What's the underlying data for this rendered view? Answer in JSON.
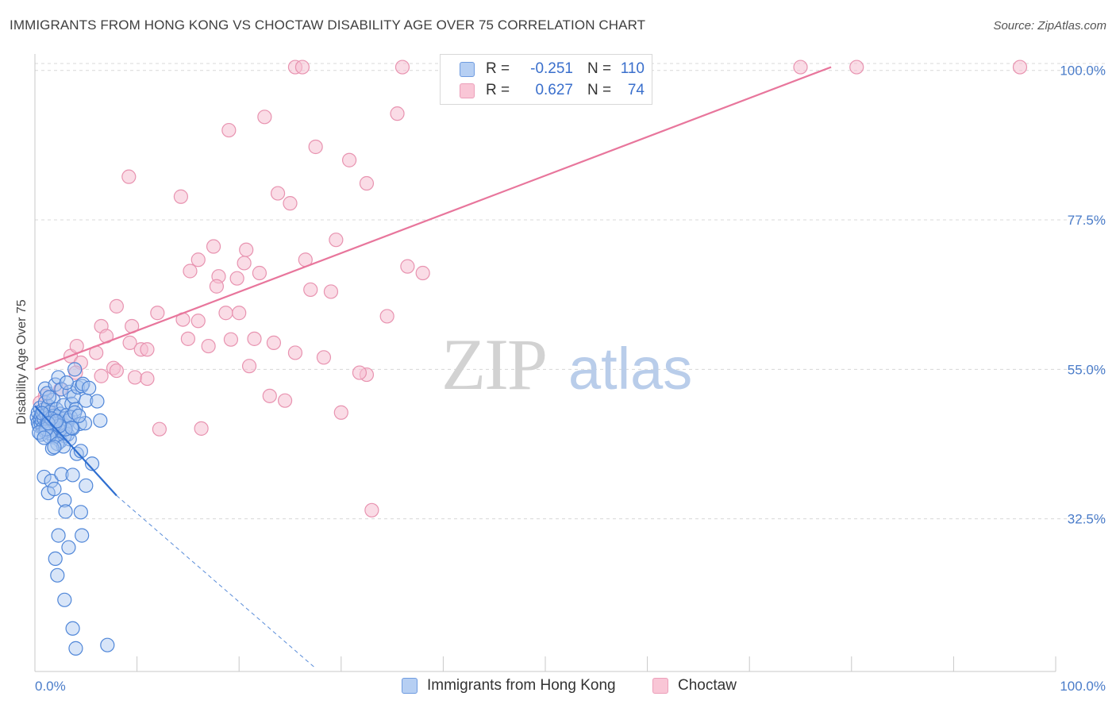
{
  "title": "IMMIGRANTS FROM HONG KONG VS CHOCTAW DISABILITY AGE OVER 75 CORRELATION CHART",
  "source": "Source: ZipAtlas.com",
  "watermark": {
    "zip": "ZIP",
    "atlas": "atlas"
  },
  "legend": {
    "rows": [
      {
        "r_label": "R =",
        "r_value": "-0.251",
        "n_label": "N =",
        "n_value": "110"
      },
      {
        "r_label": "R =",
        "r_value": "0.627",
        "n_label": "N =",
        "n_value": "74"
      }
    ]
  },
  "bottom_legend": [
    {
      "label": "Immigrants from Hong Kong"
    },
    {
      "label": "Choctaw"
    }
  ],
  "colors": {
    "blue_fill": "#a9c6f0",
    "blue_stroke": "#4f86d8",
    "blue_line": "#2f6fd0",
    "pink_fill": "#f6bfd1",
    "pink_stroke": "#e893b0",
    "pink_line": "#e8769c",
    "axis_text": "#4a7cc9",
    "grid": "#d8d8d8"
  },
  "chart_data": {
    "type": "scatter",
    "title": "IMMIGRANTS FROM HONG KONG VS CHOCTAW DISABILITY AGE OVER 75 CORRELATION CHART",
    "xlabel": "",
    "ylabel": "Disability Age Over 75",
    "xlim": [
      0,
      100
    ],
    "ylim": [
      10,
      102
    ],
    "x_tick_labels": [
      "0.0%",
      "100.0%"
    ],
    "y_ticks": [
      32.5,
      55.0,
      77.5,
      100.0
    ],
    "y_tick_labels": [
      "32.5%",
      "55.0%",
      "77.5%",
      "100.0%"
    ],
    "series": [
      {
        "name": "Immigrants from Hong Kong",
        "r": -0.251,
        "n": 110,
        "trend": {
          "solid": [
            [
              0,
              49.5
            ],
            [
              8,
              36.0
            ]
          ],
          "dashed": [
            [
              8,
              36.0
            ],
            [
              27.5,
              10.0
            ]
          ]
        },
        "points": [
          [
            0.2,
            47.8
          ],
          [
            0.3,
            47.0
          ],
          [
            0.3,
            48.5
          ],
          [
            0.4,
            46.5
          ],
          [
            0.5,
            49.2
          ],
          [
            0.5,
            47.6
          ],
          [
            0.6,
            46.8
          ],
          [
            0.6,
            48.0
          ],
          [
            0.7,
            47.3
          ],
          [
            0.8,
            48.9
          ],
          [
            0.8,
            46.2
          ],
          [
            0.9,
            47.5
          ],
          [
            1.0,
            50.0
          ],
          [
            1.0,
            45.8
          ],
          [
            1.1,
            48.2
          ],
          [
            1.2,
            47.0
          ],
          [
            1.2,
            46.4
          ],
          [
            1.3,
            49.5
          ],
          [
            1.4,
            47.8
          ],
          [
            1.5,
            46.6
          ],
          [
            1.5,
            48.6
          ],
          [
            1.6,
            45.9
          ],
          [
            1.7,
            47.2
          ],
          [
            1.8,
            50.4
          ],
          [
            1.8,
            48.0
          ],
          [
            1.9,
            46.9
          ],
          [
            2.0,
            47.4
          ],
          [
            2.1,
            49.0
          ],
          [
            2.2,
            46.3
          ],
          [
            2.3,
            47.9
          ],
          [
            2.4,
            45.5
          ],
          [
            2.5,
            48.3
          ],
          [
            2.6,
            47.1
          ],
          [
            2.7,
            46.0
          ],
          [
            2.8,
            49.6
          ],
          [
            2.9,
            47.6
          ],
          [
            3.0,
            46.5
          ],
          [
            3.1,
            48.1
          ],
          [
            3.2,
            45.2
          ],
          [
            3.3,
            47.3
          ],
          [
            1.0,
            52.1
          ],
          [
            1.2,
            51.4
          ],
          [
            1.4,
            50.8
          ],
          [
            2.0,
            52.7
          ],
          [
            2.3,
            53.8
          ],
          [
            2.6,
            52.0
          ],
          [
            3.4,
            51.6
          ],
          [
            3.6,
            49.8
          ],
          [
            3.8,
            50.9
          ],
          [
            4.2,
            52.3
          ],
          [
            4.6,
            52.5
          ],
          [
            5.0,
            50.3
          ],
          [
            4.0,
            49.0
          ],
          [
            3.5,
            47.8
          ],
          [
            3.9,
            48.5
          ],
          [
            4.4,
            46.8
          ],
          [
            2.5,
            44.2
          ],
          [
            1.8,
            44.8
          ],
          [
            1.5,
            45.4
          ],
          [
            2.9,
            45.0
          ],
          [
            3.4,
            44.5
          ],
          [
            1.0,
            45.6
          ],
          [
            0.6,
            45.2
          ],
          [
            1.4,
            44.9
          ],
          [
            2.2,
            43.8
          ],
          [
            2.8,
            43.4
          ],
          [
            1.7,
            43.1
          ],
          [
            3.7,
            46.1
          ],
          [
            4.9,
            46.9
          ],
          [
            6.4,
            47.3
          ],
          [
            3.0,
            46.0
          ],
          [
            2.0,
            46.8
          ],
          [
            1.1,
            46.0
          ],
          [
            0.4,
            45.5
          ],
          [
            0.9,
            44.7
          ],
          [
            3.9,
            55.0
          ],
          [
            3.1,
            53.0
          ],
          [
            4.7,
            52.8
          ],
          [
            5.3,
            52.2
          ],
          [
            6.1,
            50.2
          ],
          [
            1.9,
            43.3
          ],
          [
            4.1,
            42.3
          ],
          [
            4.5,
            42.7
          ],
          [
            5.6,
            40.8
          ],
          [
            0.9,
            38.8
          ],
          [
            1.6,
            38.2
          ],
          [
            2.6,
            39.2
          ],
          [
            3.7,
            39.1
          ],
          [
            1.3,
            36.4
          ],
          [
            1.9,
            37.0
          ],
          [
            5.0,
            37.5
          ],
          [
            2.9,
            35.3
          ],
          [
            3.0,
            33.6
          ],
          [
            4.5,
            33.5
          ],
          [
            2.3,
            30.0
          ],
          [
            3.3,
            28.2
          ],
          [
            4.6,
            30.0
          ],
          [
            2.0,
            26.5
          ],
          [
            2.2,
            24.0
          ],
          [
            2.9,
            20.3
          ],
          [
            3.7,
            16.0
          ],
          [
            4.0,
            13.0
          ],
          [
            7.1,
            13.5
          ],
          [
            4.3,
            48.0
          ],
          [
            3.6,
            46.2
          ],
          [
            2.4,
            46.5
          ],
          [
            1.6,
            47.6
          ],
          [
            0.7,
            48.4
          ],
          [
            1.3,
            46.9
          ],
          [
            2.1,
            47.2
          ]
        ]
      },
      {
        "name": "Choctaw",
        "r": 0.627,
        "n": 74,
        "trend": {
          "solid": [
            [
              0,
              55.0
            ],
            [
              78,
              100.5
            ]
          ]
        },
        "points": [
          [
            25.5,
            100.5
          ],
          [
            26.2,
            100.5
          ],
          [
            36.0,
            100.5
          ],
          [
            75.0,
            100.5
          ],
          [
            80.5,
            100.5
          ],
          [
            96.5,
            100.5
          ],
          [
            22.5,
            93.0
          ],
          [
            35.5,
            93.5
          ],
          [
            19.0,
            91.0
          ],
          [
            27.5,
            88.5
          ],
          [
            30.8,
            86.5
          ],
          [
            9.2,
            84.0
          ],
          [
            32.5,
            83.0
          ],
          [
            14.3,
            81.0
          ],
          [
            23.8,
            81.5
          ],
          [
            25.0,
            80.0
          ],
          [
            29.5,
            74.5
          ],
          [
            17.5,
            73.5
          ],
          [
            20.7,
            73.0
          ],
          [
            16.0,
            71.5
          ],
          [
            20.5,
            71.0
          ],
          [
            26.5,
            71.5
          ],
          [
            15.2,
            69.8
          ],
          [
            18.0,
            69.0
          ],
          [
            19.8,
            68.7
          ],
          [
            17.8,
            67.5
          ],
          [
            22.0,
            69.5
          ],
          [
            36.5,
            70.5
          ],
          [
            38.0,
            69.5
          ],
          [
            27.0,
            67.0
          ],
          [
            29.0,
            66.7
          ],
          [
            8.0,
            64.5
          ],
          [
            12.0,
            63.5
          ],
          [
            14.5,
            62.5
          ],
          [
            18.7,
            63.5
          ],
          [
            16.0,
            62.3
          ],
          [
            20.0,
            63.5
          ],
          [
            34.5,
            63.0
          ],
          [
            6.5,
            61.5
          ],
          [
            9.5,
            61.5
          ],
          [
            7.0,
            60.0
          ],
          [
            19.2,
            59.5
          ],
          [
            15.0,
            59.6
          ],
          [
            9.3,
            59.0
          ],
          [
            10.4,
            58.0
          ],
          [
            23.4,
            59.0
          ],
          [
            21.5,
            59.6
          ],
          [
            17.0,
            58.5
          ],
          [
            11.0,
            58.0
          ],
          [
            6.0,
            57.5
          ],
          [
            3.5,
            57.0
          ],
          [
            4.1,
            58.5
          ],
          [
            4.5,
            56.0
          ],
          [
            25.5,
            57.5
          ],
          [
            28.3,
            56.8
          ],
          [
            21.0,
            55.5
          ],
          [
            7.7,
            55.2
          ],
          [
            8.0,
            54.8
          ],
          [
            4.0,
            54.5
          ],
          [
            9.8,
            53.8
          ],
          [
            6.5,
            54.0
          ],
          [
            11.0,
            53.6
          ],
          [
            2.5,
            52.0
          ],
          [
            1.0,
            51.0
          ],
          [
            0.5,
            50.0
          ],
          [
            1.2,
            49.0
          ],
          [
            32.5,
            54.2
          ],
          [
            23.0,
            51.0
          ],
          [
            24.5,
            50.3
          ],
          [
            30.0,
            48.5
          ],
          [
            12.2,
            46.0
          ],
          [
            16.3,
            46.1
          ],
          [
            33.0,
            33.8
          ],
          [
            31.8,
            54.5
          ]
        ]
      }
    ]
  }
}
